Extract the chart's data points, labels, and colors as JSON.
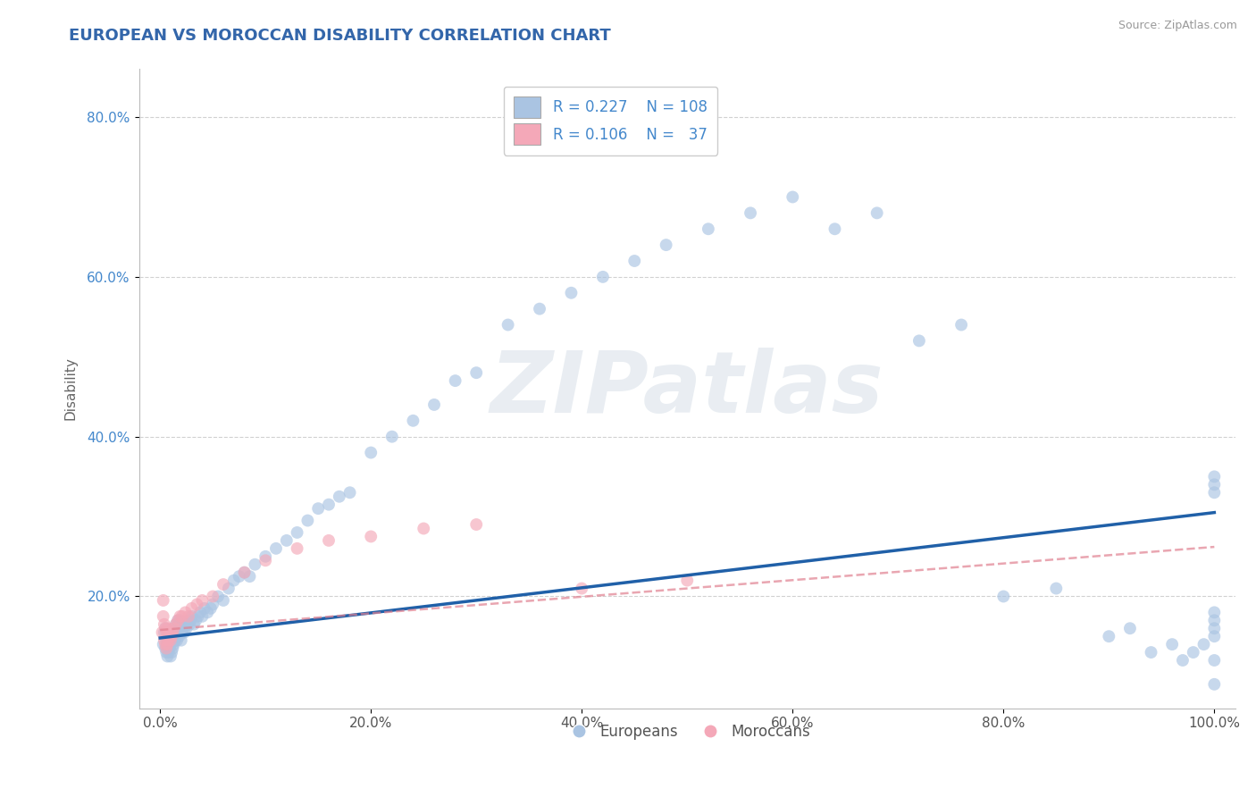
{
  "title": "EUROPEAN VS MOROCCAN DISABILITY CORRELATION CHART",
  "source": "Source: ZipAtlas.com",
  "xlabel": "",
  "ylabel": "Disability",
  "xlim": [
    -0.02,
    1.02
  ],
  "ylim": [
    0.06,
    0.86
  ],
  "xticks": [
    0.0,
    0.2,
    0.4,
    0.6,
    0.8,
    1.0
  ],
  "yticks": [
    0.2,
    0.4,
    0.6,
    0.8
  ],
  "xtick_labels": [
    "0.0%",
    "20.0%",
    "40.0%",
    "60.0%",
    "80.0%",
    "100.0%"
  ],
  "ytick_labels": [
    "20.0%",
    "40.0%",
    "60.0%",
    "80.0%"
  ],
  "european_color": "#aac4e2",
  "moroccan_color": "#f4a8b8",
  "european_line_color": "#2060a8",
  "moroccan_line_color": "#e08090",
  "grid_color": "#cccccc",
  "background_color": "#ffffff",
  "watermark": "ZIPatlas",
  "watermark_color": "#c8d4e0",
  "legend_r_european": "0.227",
  "legend_n_european": "108",
  "legend_r_moroccan": "0.106",
  "legend_n_moroccan": "37",
  "europeans_label": "Europeans",
  "moroccans_label": "Moroccans",
  "european_x": [
    0.003,
    0.004,
    0.005,
    0.005,
    0.006,
    0.006,
    0.007,
    0.007,
    0.008,
    0.008,
    0.009,
    0.009,
    0.01,
    0.01,
    0.01,
    0.011,
    0.011,
    0.012,
    0.012,
    0.013,
    0.013,
    0.014,
    0.014,
    0.015,
    0.015,
    0.016,
    0.016,
    0.017,
    0.017,
    0.018,
    0.018,
    0.019,
    0.019,
    0.02,
    0.02,
    0.021,
    0.022,
    0.023,
    0.024,
    0.025,
    0.026,
    0.027,
    0.028,
    0.029,
    0.03,
    0.032,
    0.034,
    0.036,
    0.038,
    0.04,
    0.042,
    0.045,
    0.048,
    0.05,
    0.055,
    0.06,
    0.065,
    0.07,
    0.075,
    0.08,
    0.085,
    0.09,
    0.1,
    0.11,
    0.12,
    0.13,
    0.14,
    0.15,
    0.16,
    0.17,
    0.18,
    0.2,
    0.22,
    0.24,
    0.26,
    0.28,
    0.3,
    0.33,
    0.36,
    0.39,
    0.42,
    0.45,
    0.48,
    0.52,
    0.56,
    0.6,
    0.64,
    0.68,
    0.72,
    0.76,
    0.8,
    0.85,
    0.9,
    0.92,
    0.94,
    0.96,
    0.97,
    0.98,
    0.99,
    1.0,
    1.0,
    1.0,
    1.0,
    1.0,
    1.0,
    1.0,
    1.0,
    1.0
  ],
  "european_y": [
    0.14,
    0.155,
    0.135,
    0.16,
    0.13,
    0.145,
    0.125,
    0.15,
    0.13,
    0.145,
    0.135,
    0.15,
    0.125,
    0.14,
    0.155,
    0.13,
    0.145,
    0.135,
    0.15,
    0.14,
    0.155,
    0.145,
    0.16,
    0.15,
    0.165,
    0.145,
    0.16,
    0.155,
    0.17,
    0.15,
    0.165,
    0.155,
    0.17,
    0.145,
    0.16,
    0.155,
    0.16,
    0.155,
    0.165,
    0.16,
    0.165,
    0.17,
    0.165,
    0.17,
    0.175,
    0.165,
    0.17,
    0.175,
    0.18,
    0.175,
    0.185,
    0.18,
    0.185,
    0.19,
    0.2,
    0.195,
    0.21,
    0.22,
    0.225,
    0.23,
    0.225,
    0.24,
    0.25,
    0.26,
    0.27,
    0.28,
    0.295,
    0.31,
    0.315,
    0.325,
    0.33,
    0.38,
    0.4,
    0.42,
    0.44,
    0.47,
    0.48,
    0.54,
    0.56,
    0.58,
    0.6,
    0.62,
    0.64,
    0.66,
    0.68,
    0.7,
    0.66,
    0.68,
    0.52,
    0.54,
    0.2,
    0.21,
    0.15,
    0.16,
    0.13,
    0.14,
    0.12,
    0.13,
    0.14,
    0.15,
    0.16,
    0.17,
    0.18,
    0.34,
    0.35,
    0.33,
    0.12,
    0.09
  ],
  "moroccan_x": [
    0.002,
    0.003,
    0.003,
    0.004,
    0.004,
    0.005,
    0.005,
    0.006,
    0.006,
    0.007,
    0.007,
    0.008,
    0.009,
    0.01,
    0.011,
    0.012,
    0.013,
    0.015,
    0.017,
    0.019,
    0.021,
    0.024,
    0.027,
    0.03,
    0.035,
    0.04,
    0.05,
    0.06,
    0.08,
    0.1,
    0.13,
    0.16,
    0.2,
    0.25,
    0.3,
    0.4,
    0.5
  ],
  "moroccan_y": [
    0.155,
    0.175,
    0.195,
    0.145,
    0.165,
    0.14,
    0.16,
    0.135,
    0.155,
    0.14,
    0.16,
    0.145,
    0.15,
    0.145,
    0.15,
    0.155,
    0.16,
    0.165,
    0.17,
    0.175,
    0.175,
    0.18,
    0.175,
    0.185,
    0.19,
    0.195,
    0.2,
    0.215,
    0.23,
    0.245,
    0.26,
    0.27,
    0.275,
    0.285,
    0.29,
    0.21,
    0.22
  ],
  "eu_trend_x0": 0.0,
  "eu_trend_y0": 0.148,
  "eu_trend_x1": 1.0,
  "eu_trend_y1": 0.305,
  "mo_trend_x0": 0.0,
  "mo_trend_y0": 0.158,
  "mo_trend_x1": 1.0,
  "mo_trend_y1": 0.262
}
